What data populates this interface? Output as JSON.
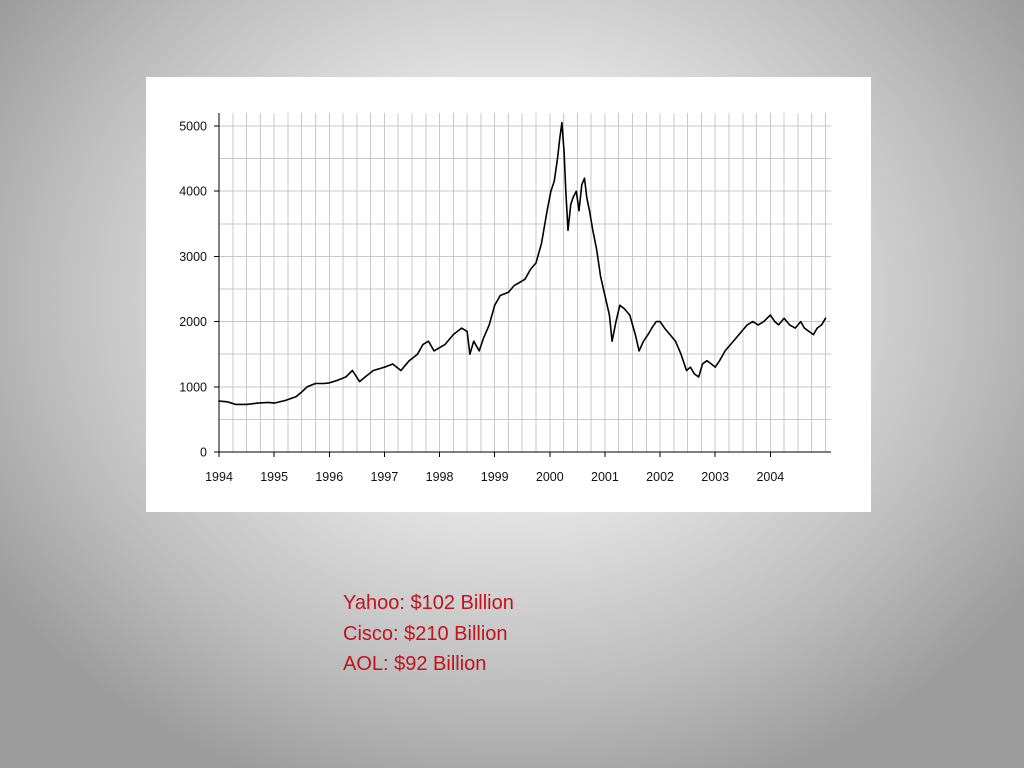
{
  "notes": {
    "lines": [
      "Yahoo: $102 Billion",
      "Cisco: $210 Billion",
      "AOL: $92 Billion"
    ]
  },
  "colors": {
    "note_text": "#c0141c",
    "line": "#000000",
    "grid": "#c8c8c8"
  },
  "chart_data": {
    "type": "line",
    "title": "",
    "xlabel": "",
    "ylabel": "",
    "xlim": [
      1994.0,
      2005.1
    ],
    "ylim": [
      0,
      5200
    ],
    "grid": true,
    "legend": "none",
    "x_ticks": [
      "1994",
      "1995",
      "1996",
      "1997",
      "1998",
      "1999",
      "2000",
      "2001",
      "2002",
      "2003",
      "2004"
    ],
    "y_ticks": [
      "0",
      "1000",
      "2000",
      "3000",
      "4000",
      "5000"
    ],
    "series": [
      {
        "x": [
          1994.0,
          1994.15,
          1994.3,
          1994.5,
          1994.7,
          1994.9,
          1995.0,
          1995.2,
          1995.4,
          1995.5,
          1995.6,
          1995.75,
          1995.9,
          1996.0,
          1996.15,
          1996.3,
          1996.42,
          1996.55,
          1996.65,
          1996.8,
          1997.0,
          1997.15,
          1997.3,
          1997.45,
          1997.6,
          1997.7,
          1997.8,
          1997.9,
          1998.0,
          1998.1,
          1998.25,
          1998.4,
          1998.5,
          1998.55,
          1998.62,
          1998.72,
          1998.8,
          1998.9,
          1999.0,
          1999.1,
          1999.25,
          1999.35,
          1999.45,
          1999.55,
          1999.65,
          1999.75,
          1999.85,
          1999.95,
          2000.02,
          2000.08,
          2000.14,
          2000.18,
          2000.22,
          2000.26,
          2000.29,
          2000.33,
          2000.38,
          2000.42,
          2000.48,
          2000.53,
          2000.58,
          2000.63,
          2000.67,
          2000.72,
          2000.78,
          2000.85,
          2000.92,
          2001.0,
          2001.08,
          2001.13,
          2001.2,
          2001.27,
          2001.35,
          2001.45,
          2001.55,
          2001.62,
          2001.7,
          2001.78,
          2001.85,
          2001.93,
          2002.0,
          2002.08,
          2002.18,
          2002.28,
          2002.38,
          2002.48,
          2002.55,
          2002.62,
          2002.7,
          2002.77,
          2002.85,
          2002.93,
          2003.0,
          2003.08,
          2003.18,
          2003.28,
          2003.38,
          2003.48,
          2003.58,
          2003.68,
          2003.78,
          2003.88,
          2004.0,
          2004.08,
          2004.15,
          2004.25,
          2004.35,
          2004.45,
          2004.55,
          2004.62,
          2004.7,
          2004.78,
          2004.85,
          2004.93,
          2005.0
        ],
        "y": [
          780,
          770,
          730,
          730,
          750,
          760,
          750,
          790,
          850,
          920,
          1000,
          1050,
          1050,
          1060,
          1100,
          1150,
          1250,
          1080,
          1150,
          1250,
          1300,
          1350,
          1250,
          1400,
          1500,
          1650,
          1700,
          1550,
          1600,
          1650,
          1800,
          1900,
          1850,
          1500,
          1700,
          1550,
          1750,
          1950,
          2250,
          2400,
          2450,
          2550,
          2600,
          2650,
          2800,
          2900,
          3200,
          3700,
          4000,
          4150,
          4500,
          4800,
          5050,
          4600,
          4000,
          3400,
          3800,
          3900,
          4000,
          3700,
          4100,
          4200,
          3900,
          3700,
          3400,
          3100,
          2700,
          2400,
          2100,
          1700,
          2000,
          2250,
          2200,
          2100,
          1800,
          1550,
          1700,
          1800,
          1900,
          2000,
          2000,
          1900,
          1800,
          1700,
          1500,
          1250,
          1300,
          1200,
          1150,
          1350,
          1400,
          1350,
          1300,
          1400,
          1550,
          1650,
          1750,
          1850,
          1950,
          2000,
          1950,
          2000,
          2100,
          2000,
          1950,
          2050,
          1950,
          1900,
          2000,
          1900,
          1850,
          1800,
          1900,
          1950,
          2050
        ]
      }
    ]
  }
}
